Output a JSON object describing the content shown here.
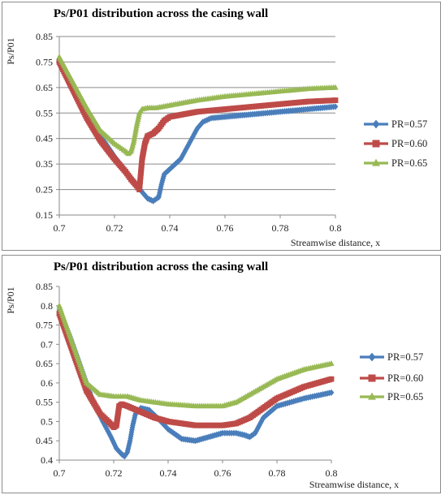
{
  "chart_data": [
    {
      "type": "line",
      "title": "Ps/P01 distribution across the casing wall",
      "xlabel": "Streamwise distance, x",
      "ylabel": "Ps/P01",
      "xlim": [
        0.7,
        0.8
      ],
      "ylim": [
        0.15,
        0.85
      ],
      "xticks": [
        "0.7",
        "0.72",
        "0.74",
        "0.76",
        "0.78",
        "0.8"
      ],
      "yticks": [
        "0.15",
        "0.25",
        "0.35",
        "0.45",
        "0.55",
        "0.65",
        "0.75",
        "0.85"
      ],
      "grid": "horizontal",
      "legend": "right",
      "series": [
        {
          "name": "PR=0.57",
          "color": "#4a7ebb",
          "marker": "diamond",
          "x": [
            0.7,
            0.705,
            0.71,
            0.715,
            0.72,
            0.725,
            0.728,
            0.73,
            0.732,
            0.734,
            0.736,
            0.737,
            0.738,
            0.74,
            0.742,
            0.744,
            0.746,
            0.748,
            0.75,
            0.752,
            0.755,
            0.76,
            0.765,
            0.77,
            0.78,
            0.79,
            0.8
          ],
          "y": [
            0.76,
            0.66,
            0.56,
            0.46,
            0.38,
            0.31,
            0.27,
            0.24,
            0.215,
            0.205,
            0.22,
            0.27,
            0.31,
            0.33,
            0.35,
            0.37,
            0.41,
            0.45,
            0.49,
            0.515,
            0.53,
            0.535,
            0.54,
            0.545,
            0.555,
            0.565,
            0.575
          ]
        },
        {
          "name": "PR=0.60",
          "color": "#be4b48",
          "marker": "square",
          "x": [
            0.7,
            0.705,
            0.71,
            0.715,
            0.72,
            0.724,
            0.726,
            0.728,
            0.729,
            0.73,
            0.731,
            0.732,
            0.734,
            0.736,
            0.738,
            0.74,
            0.745,
            0.75,
            0.76,
            0.77,
            0.78,
            0.79,
            0.8
          ],
          "y": [
            0.75,
            0.64,
            0.53,
            0.44,
            0.37,
            0.32,
            0.29,
            0.265,
            0.25,
            0.37,
            0.43,
            0.46,
            0.47,
            0.49,
            0.52,
            0.535,
            0.545,
            0.555,
            0.565,
            0.575,
            0.585,
            0.595,
            0.6
          ]
        },
        {
          "name": "PR=0.65",
          "color": "#98b954",
          "marker": "triangle",
          "x": [
            0.7,
            0.705,
            0.71,
            0.715,
            0.72,
            0.724,
            0.725,
            0.726,
            0.727,
            0.728,
            0.729,
            0.73,
            0.732,
            0.735,
            0.74,
            0.745,
            0.75,
            0.76,
            0.77,
            0.78,
            0.79,
            0.8
          ],
          "y": [
            0.77,
            0.67,
            0.57,
            0.48,
            0.43,
            0.4,
            0.39,
            0.4,
            0.44,
            0.5,
            0.55,
            0.565,
            0.57,
            0.57,
            0.58,
            0.59,
            0.6,
            0.615,
            0.625,
            0.635,
            0.645,
            0.65
          ]
        }
      ]
    },
    {
      "type": "line",
      "title": "Ps/P01 distribution across the casing wall",
      "xlabel": "Streamwise distance, x",
      "ylabel": "Ps/P01",
      "xlim": [
        0.7,
        0.8
      ],
      "ylim": [
        0.4,
        0.85
      ],
      "xticks": [
        "0.7",
        "0.72",
        "0.74",
        "0.76",
        "0.78",
        "0.8"
      ],
      "yticks": [
        "0.4",
        "0.45",
        "0.5",
        "0.55",
        "0.6",
        "0.65",
        "0.7",
        "0.75",
        "0.8",
        "0.85"
      ],
      "grid": "none",
      "legend": "right",
      "series": [
        {
          "name": "PR=0.57",
          "color": "#4a7ebb",
          "marker": "diamond",
          "x": [
            0.7,
            0.704,
            0.708,
            0.712,
            0.716,
            0.719,
            0.721,
            0.723,
            0.724,
            0.725,
            0.726,
            0.727,
            0.728,
            0.73,
            0.733,
            0.736,
            0.74,
            0.745,
            0.75,
            0.755,
            0.76,
            0.765,
            0.768,
            0.77,
            0.772,
            0.775,
            0.78,
            0.79,
            0.8
          ],
          "y": [
            0.79,
            0.72,
            0.64,
            0.56,
            0.5,
            0.46,
            0.43,
            0.415,
            0.41,
            0.42,
            0.45,
            0.49,
            0.52,
            0.535,
            0.53,
            0.51,
            0.48,
            0.455,
            0.45,
            0.46,
            0.47,
            0.47,
            0.465,
            0.46,
            0.47,
            0.51,
            0.54,
            0.56,
            0.575
          ]
        },
        {
          "name": "PR=0.60",
          "color": "#be4b48",
          "marker": "square",
          "x": [
            0.7,
            0.705,
            0.71,
            0.715,
            0.718,
            0.72,
            0.721,
            0.722,
            0.723,
            0.725,
            0.73,
            0.735,
            0.74,
            0.745,
            0.75,
            0.76,
            0.765,
            0.77,
            0.775,
            0.78,
            0.79,
            0.8
          ],
          "y": [
            0.78,
            0.68,
            0.58,
            0.52,
            0.5,
            0.485,
            0.49,
            0.54,
            0.545,
            0.54,
            0.525,
            0.51,
            0.5,
            0.495,
            0.49,
            0.49,
            0.495,
            0.51,
            0.535,
            0.56,
            0.59,
            0.61
          ]
        },
        {
          "name": "PR=0.65",
          "color": "#98b954",
          "marker": "triangle",
          "x": [
            0.7,
            0.705,
            0.71,
            0.715,
            0.72,
            0.725,
            0.73,
            0.74,
            0.75,
            0.76,
            0.765,
            0.77,
            0.775,
            0.78,
            0.79,
            0.8
          ],
          "y": [
            0.8,
            0.7,
            0.6,
            0.57,
            0.565,
            0.565,
            0.555,
            0.545,
            0.54,
            0.54,
            0.55,
            0.57,
            0.59,
            0.61,
            0.635,
            0.65
          ]
        }
      ]
    }
  ]
}
